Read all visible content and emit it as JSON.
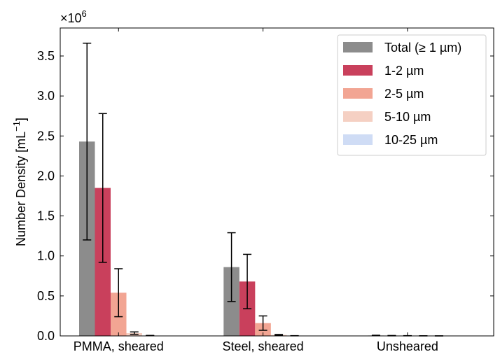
{
  "chart_data": {
    "type": "bar",
    "title": "",
    "xlabel": "",
    "ylabel": "Number Density [mL",
    "ylabel_exponent": "−1",
    "ylabel_close": "]",
    "y_multiplier_base": "×10",
    "y_multiplier_exponent": "6",
    "y_multiplier": 1000000,
    "ylim": [
      0,
      3.85
    ],
    "yticks": [
      0.0,
      0.5,
      1.0,
      1.5,
      2.0,
      2.5,
      3.0,
      3.5
    ],
    "ytick_labels": [
      "0.0",
      "0.5",
      "1.0",
      "1.5",
      "2.0",
      "2.5",
      "3.0",
      "3.5"
    ],
    "categories": [
      "PMMA, sheared",
      "Steel, sheared",
      "Unsheared"
    ],
    "series": [
      {
        "name": "Total (≥  1 µm)",
        "color": "#8c8c8c",
        "values": [
          2.43,
          0.86,
          0.005
        ],
        "errors": [
          1.23,
          0.43,
          0.003
        ]
      },
      {
        "name": "1-2 µm",
        "color": "#c9405c",
        "values": [
          1.85,
          0.68,
          0.003
        ],
        "errors": [
          0.93,
          0.34,
          0.002
        ]
      },
      {
        "name": "2-5 µm",
        "color": "#f2a593",
        "values": [
          0.54,
          0.16,
          0.002
        ],
        "errors": [
          0.3,
          0.09,
          0.001
        ]
      },
      {
        "name": "5-10 µm",
        "color": "#f5d0c3",
        "values": [
          0.035,
          0.012,
          0.001
        ],
        "errors": [
          0.015,
          0.006,
          0.0005
        ]
      },
      {
        "name": "10-25 µm",
        "color": "#cfdcf5",
        "values": [
          0.004,
          0.002,
          0.0003
        ],
        "errors": [
          0.002,
          0.001,
          0.0002
        ]
      }
    ],
    "error_bars": true,
    "grid": false,
    "legend": "top-right"
  }
}
